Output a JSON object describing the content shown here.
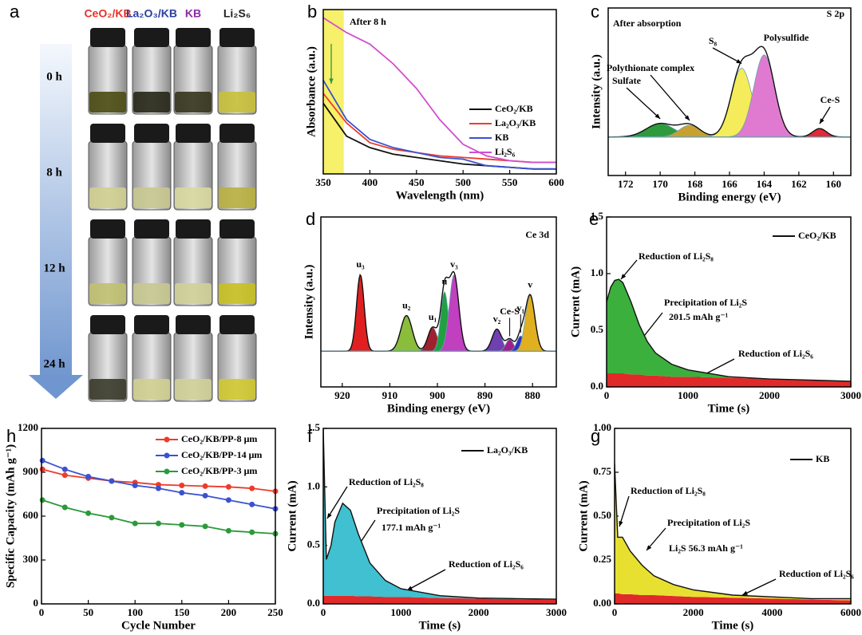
{
  "chart_data": [
    {
      "type": "photo",
      "label": "a",
      "columns": [
        "CeO₂/KB",
        "La₂O₃/KB",
        "KB",
        "Li₂S₆"
      ],
      "column_colors": [
        "#e8322a",
        "#2a3fa0",
        "#8a2aa8",
        "#222222"
      ],
      "rows": [
        "0 h",
        "8 h",
        "12 h",
        "24 h"
      ]
    },
    {
      "type": "line",
      "label": "b",
      "xlabel": "Wavelength (nm)",
      "ylabel": "Absorbance (a.u.)",
      "annotations": [
        "After 8 h"
      ],
      "highlight": [
        350,
        372
      ],
      "x": [
        350,
        375,
        400,
        425,
        450,
        475,
        500,
        525,
        550,
        575,
        600
      ],
      "xlim": [
        350,
        600
      ],
      "xticks": [
        350,
        400,
        450,
        500,
        550,
        600
      ],
      "ylim": [
        0,
        1
      ],
      "series": [
        {
          "name": "CeO₂/KB",
          "color": "#111111",
          "values": [
            0.43,
            0.23,
            0.16,
            0.12,
            0.1,
            0.08,
            0.06,
            0.05,
            0.04,
            0.03,
            0.03
          ]
        },
        {
          "name": "La₂O₃/KB",
          "color": "#ee3b2b",
          "values": [
            0.49,
            0.31,
            0.19,
            0.15,
            0.13,
            0.11,
            0.1,
            0.09,
            0.08,
            0.07,
            0.07
          ]
        },
        {
          "name": "KB",
          "color": "#3a52d0",
          "values": [
            0.57,
            0.33,
            0.21,
            0.16,
            0.13,
            0.1,
            0.09,
            0.05,
            0.04,
            0.03,
            0.03
          ]
        },
        {
          "name": "Li₂S₆",
          "color": "#d050d0",
          "values": [
            0.95,
            0.86,
            0.79,
            0.67,
            0.52,
            0.33,
            0.18,
            0.11,
            0.08,
            0.07,
            0.07
          ]
        }
      ]
    },
    {
      "type": "peaks",
      "label": "c",
      "xlabel": "Binding energy (eV)",
      "ylabel": "Intensity (a.u.)",
      "annotations": [
        "After absorption",
        "S 2p"
      ],
      "xlim": [
        173,
        159
      ],
      "xticks": [
        172,
        170,
        168,
        166,
        164,
        162,
        160
      ],
      "ylim": [
        0,
        1
      ],
      "baseline": 0.23,
      "peaks": [
        {
          "name": "Sulfate",
          "color": "#2e9a3c",
          "center": 170.0,
          "height": 0.08,
          "width": 0.8
        },
        {
          "name": "Polythionate complex",
          "color": "#c8a030",
          "center": 168.3,
          "height": 0.07,
          "width": 0.6
        },
        {
          "name": "S₈",
          "color": "#f4ec5a",
          "center": 165.3,
          "height": 0.41,
          "width": 0.6
        },
        {
          "name": "Polysulfide",
          "color": "#e07ad0",
          "center": 164.0,
          "height": 0.49,
          "width": 0.6
        },
        {
          "name": "Ce-S",
          "color": "#e02a3a",
          "center": 160.8,
          "height": 0.05,
          "width": 0.4
        }
      ]
    },
    {
      "type": "peaks",
      "label": "d",
      "xlabel": "Binding energy (eV)",
      "ylabel": "Intensity (a.u.)",
      "annotations": [
        "Ce 3d"
      ],
      "xlim": [
        924.5,
        875
      ],
      "xticks": [
        920,
        910,
        900,
        890,
        880
      ],
      "ylim": [
        0,
        1
      ],
      "baseline": 0.21,
      "peaks": [
        {
          "name": "u₃",
          "color": "#e02020",
          "center": 916.2,
          "height": 0.45,
          "width": 0.8
        },
        {
          "name": "u₂",
          "color": "#8bbd3c",
          "center": 906.5,
          "height": 0.21,
          "width": 1.2
        },
        {
          "name": "u₁",
          "color": "#a02030",
          "center": 901.0,
          "height": 0.14,
          "width": 1.0
        },
        {
          "name": "u",
          "color": "#20a040",
          "center": 898.5,
          "height": 0.35,
          "width": 0.8
        },
        {
          "name": "v₃",
          "color": "#c040c0",
          "center": 896.5,
          "height": 0.45,
          "width": 1.0
        },
        {
          "name": "v₂",
          "color": "#7040b0",
          "center": 887.5,
          "height": 0.13,
          "width": 1.0
        },
        {
          "name": "Ce-S",
          "color": "#a0208a",
          "center": 884.8,
          "height": 0.07,
          "width": 0.8
        },
        {
          "name": "v₁",
          "color": "#3030c0",
          "center": 882.5,
          "height": 0.09,
          "width": 0.8
        },
        {
          "name": "v",
          "color": "#e0b020",
          "center": 880.5,
          "height": 0.33,
          "width": 1.0
        }
      ]
    },
    {
      "type": "current",
      "label": "e",
      "xlabel": "Time (s)",
      "ylabel": "Current (mA)",
      "annotations": [
        "Reduction of Li₂S₈",
        "Precipitation of Li₂S",
        "201.5 mAh g⁻¹",
        "Reduction of Li₂S₆"
      ],
      "xlim": [
        0,
        3000
      ],
      "xticks": [
        0,
        1000,
        2000,
        3000
      ],
      "ylim": [
        0,
        1.5
      ],
      "yticks": [
        {
          "value": 0,
          "label": "0.0"
        },
        {
          "value": 0.5,
          "label": "0.5"
        },
        {
          "value": 1,
          "label": "1.0"
        },
        {
          "value": 1.5,
          "label": "1.5"
        }
      ],
      "fill_color": "#3cb03c",
      "baseline_color": "#e02a2a",
      "x": [
        0,
        50,
        100,
        150,
        200,
        300,
        400,
        500,
        600,
        800,
        1000,
        1500,
        2000,
        2500,
        3000
      ],
      "baseline": [
        0.12,
        0.12,
        0.12,
        0.12,
        0.12,
        0.11,
        0.11,
        0.1,
        0.1,
        0.09,
        0.09,
        0.08,
        0.07,
        0.06,
        0.05
      ],
      "series": [
        {
          "name": "CeO₂/KB",
          "color": "#111111",
          "values": [
            0.75,
            0.88,
            0.94,
            0.95,
            0.92,
            0.75,
            0.55,
            0.4,
            0.3,
            0.2,
            0.15,
            0.09,
            0.07,
            0.06,
            0.05
          ]
        }
      ]
    },
    {
      "type": "line",
      "label": "h",
      "xlabel": "Cycle Number",
      "ylabel": "Specific Capacity (mAh g⁻¹)",
      "markers": true,
      "x": [
        1,
        25,
        50,
        75,
        100,
        125,
        150,
        175,
        200,
        225,
        250
      ],
      "xlim": [
        0,
        250
      ],
      "xticks": [
        0,
        50,
        100,
        150,
        200,
        250
      ],
      "ylim": [
        0,
        1200
      ],
      "yticks": [
        0,
        300,
        600,
        900,
        1200
      ],
      "series": [
        {
          "name": "CeO₂/KB/PP-8 μm",
          "color": "#ee3b2b",
          "values": [
            920,
            880,
            860,
            840,
            830,
            815,
            810,
            805,
            800,
            790,
            770
          ]
        },
        {
          "name": "CeO₂/KB/PP-14 μm",
          "color": "#3a52d0",
          "values": [
            980,
            920,
            870,
            840,
            810,
            790,
            760,
            740,
            710,
            680,
            650
          ]
        },
        {
          "name": "CeO₂/KB/PP-3 μm",
          "color": "#2a9a3a",
          "values": [
            710,
            660,
            620,
            590,
            550,
            550,
            540,
            530,
            500,
            490,
            480
          ]
        }
      ]
    },
    {
      "type": "current",
      "label": "f",
      "xlabel": "Time (s)",
      "ylabel": "Current (mA)",
      "annotations": [
        "Reduction of Li₂S₈",
        "Precipitation of Li₂S",
        "177.1 mAh g⁻¹",
        "Reduction of Li₂S₆"
      ],
      "xlim": [
        0,
        3000
      ],
      "xticks": [
        0,
        1000,
        2000,
        3000
      ],
      "ylim": [
        0,
        1.5
      ],
      "yticks": [
        {
          "value": 0,
          "label": "0.0"
        },
        {
          "value": 0.5,
          "label": "0.5"
        },
        {
          "value": 1,
          "label": "1.0"
        },
        {
          "value": 1.5,
          "label": "1.5"
        }
      ],
      "fill_color": "#40c0d0",
      "baseline_color": "#e02a2a",
      "x": [
        0,
        40,
        100,
        150,
        250,
        350,
        450,
        600,
        800,
        1000,
        1500,
        2000,
        2500,
        3000
      ],
      "baseline": [
        0.07,
        0.07,
        0.07,
        0.07,
        0.07,
        0.07,
        0.065,
        0.065,
        0.06,
        0.06,
        0.05,
        0.045,
        0.04,
        0.035
      ],
      "series": [
        {
          "name": "La₂O₃/KB",
          "color": "#111111",
          "values": [
            1.5,
            0.38,
            0.5,
            0.7,
            0.86,
            0.8,
            0.6,
            0.35,
            0.2,
            0.13,
            0.07,
            0.05,
            0.045,
            0.04
          ]
        }
      ]
    },
    {
      "type": "current",
      "label": "g",
      "xlabel": "Time (s)",
      "ylabel": "Current (mA)",
      "annotations": [
        "Reduction of Li₂S₈",
        "Precipitation of Li₂S",
        "Li₂S  56.3 mAh g⁻¹",
        "Reduction of Li₂S₆"
      ],
      "xlim": [
        0,
        6000
      ],
      "xticks": [
        0,
        2000,
        4000,
        6000
      ],
      "ylim": [
        0,
        1
      ],
      "yticks": [
        {
          "value": 0,
          "label": "0.00"
        },
        {
          "value": 0.25,
          "label": "0.25"
        },
        {
          "value": 0.5,
          "label": "0.50"
        },
        {
          "value": 0.75,
          "label": "0.75"
        },
        {
          "value": 1,
          "label": "1.00"
        }
      ],
      "fill_color": "#e8e030",
      "baseline_color": "#e02a2a",
      "x": [
        0,
        80,
        200,
        400,
        700,
        1000,
        1500,
        2000,
        3000,
        4000,
        5000,
        6000
      ],
      "baseline": [
        0.06,
        0.06,
        0.055,
        0.055,
        0.05,
        0.05,
        0.045,
        0.04,
        0.035,
        0.03,
        0.025,
        0.02
      ],
      "series": [
        {
          "name": "KB",
          "color": "#111111",
          "values": [
            0.8,
            0.38,
            0.38,
            0.3,
            0.22,
            0.16,
            0.11,
            0.08,
            0.05,
            0.04,
            0.03,
            0.03
          ]
        }
      ]
    }
  ]
}
